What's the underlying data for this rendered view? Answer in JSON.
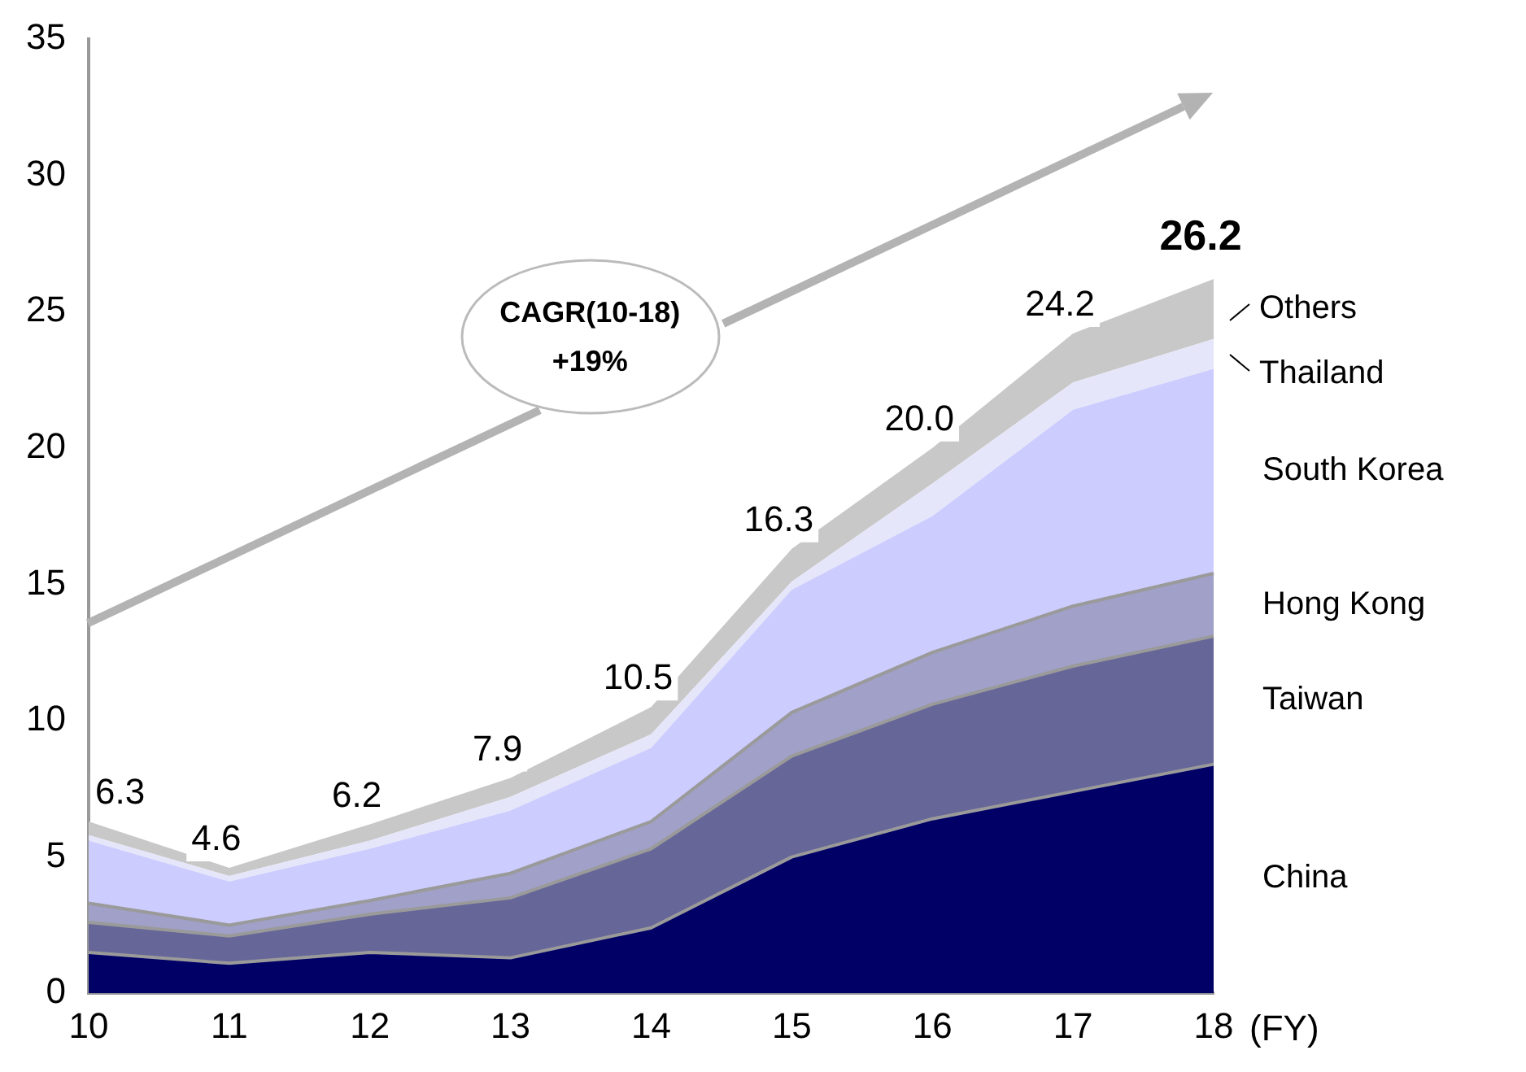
{
  "chart_data": {
    "type": "area",
    "stacked": true,
    "categories": [
      "10",
      "11",
      "12",
      "13",
      "14",
      "15",
      "16",
      "17",
      "18"
    ],
    "xlabel": "(FY)",
    "ylim": [
      0,
      35
    ],
    "yticks": [
      0,
      5,
      10,
      15,
      20,
      25,
      30,
      35
    ],
    "grid": false,
    "legend": false,
    "series": [
      {
        "name": "China",
        "color": "#000066",
        "values": [
          1.5,
          1.1,
          1.5,
          1.3,
          2.4,
          5.0,
          6.4,
          7.4,
          8.4
        ]
      },
      {
        "name": "Taiwan",
        "color": "#666699",
        "values": [
          1.1,
          1.0,
          1.4,
          2.2,
          2.9,
          3.7,
          4.2,
          4.6,
          4.7
        ]
      },
      {
        "name": "Hong Kong",
        "color": "#a0a0c8",
        "values": [
          0.7,
          0.4,
          0.5,
          0.9,
          1.0,
          1.6,
          1.9,
          2.2,
          2.3
        ]
      },
      {
        "name": "South Korea",
        "color": "#ccccff",
        "values": [
          2.3,
          1.6,
          1.9,
          2.3,
          2.7,
          4.5,
          5.0,
          7.2,
          7.5
        ]
      },
      {
        "name": "Thailand",
        "color": "#e6e6fa",
        "values": [
          0.2,
          0.2,
          0.3,
          0.5,
          0.5,
          0.3,
          1.2,
          1.0,
          1.1
        ]
      },
      {
        "name": "Others",
        "color": "#c8c8c8",
        "values": [
          0.5,
          0.3,
          0.6,
          0.7,
          1.0,
          1.2,
          1.3,
          1.8,
          2.2
        ]
      }
    ],
    "totals": [
      "6.3",
      "4.6",
      "6.2",
      "7.9",
      "10.5",
      "16.3",
      "20.0",
      "24.2",
      "26.2"
    ],
    "annotations": [
      "CAGR(10-18) +19%"
    ]
  }
}
